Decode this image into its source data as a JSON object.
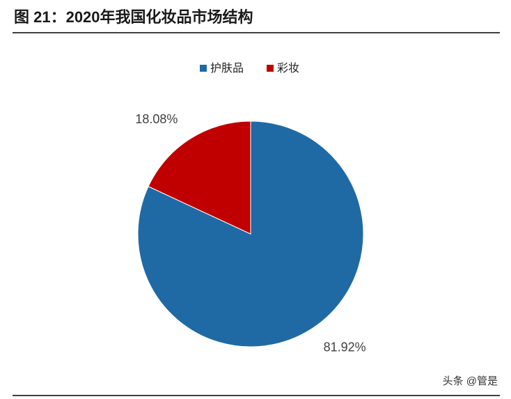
{
  "chart_data": {
    "type": "pie",
    "title": "图 21：2020年我国化妆品市场结构",
    "categories": [
      "护肤品",
      "彩妆"
    ],
    "values": [
      81.92,
      18.08
    ],
    "value_labels": [
      "81.92%",
      "18.08%"
    ],
    "colors": [
      "#1f6aa5",
      "#c00000"
    ],
    "legend": "top",
    "watermark": "头条 @管是"
  }
}
